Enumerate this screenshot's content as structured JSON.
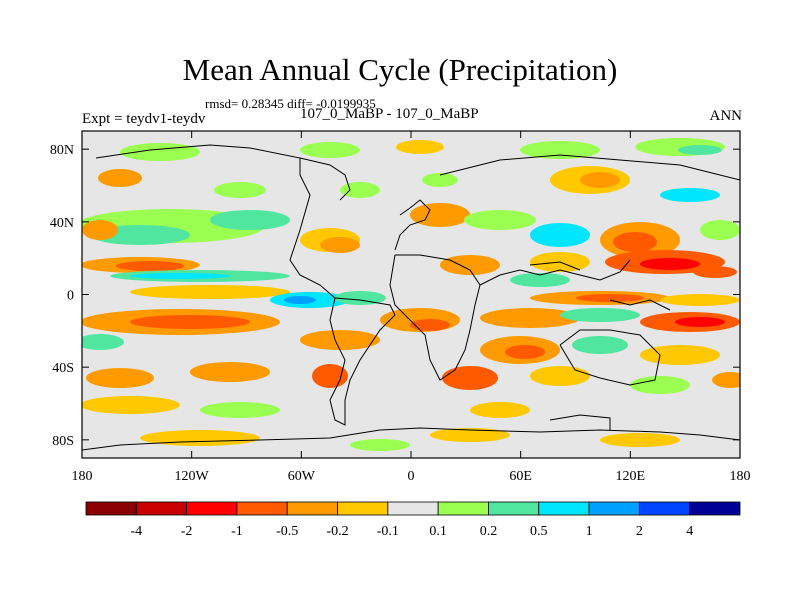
{
  "chart_data": {
    "type": "heatmap",
    "title": "Mean Annual Cycle (Precipitation)",
    "stats_text": "rmsd= 0.28345 diff= -0.0199935",
    "left_label": "Expt = teydv1-teydv",
    "center_label": "107_0_MaBP - 107_0_MaBP",
    "right_label": "ANN",
    "x_ticks": [
      "180",
      "120W",
      "60W",
      "0",
      "60E",
      "120E",
      "180"
    ],
    "x_tick_values": [
      -180,
      -120,
      -60,
      0,
      60,
      120,
      180
    ],
    "y_ticks": [
      "80N",
      "40N",
      "0",
      "40S",
      "80S"
    ],
    "y_tick_values": [
      80,
      40,
      0,
      -40,
      -80
    ],
    "xlim": [
      -180,
      180
    ],
    "ylim": [
      -90,
      90
    ],
    "colorbar": {
      "labels": [
        "-4",
        "-2",
        "-1",
        "-0.5",
        "-0.2",
        "-0.1",
        "0.1",
        "0.2",
        "0.5",
        "1",
        "2",
        "4"
      ],
      "colors": [
        "#8b0000",
        "#c80000",
        "#ff0000",
        "#ff5a00",
        "#ff9a00",
        "#ffc800",
        "#e6e6e6",
        "#9aff50",
        "#50e6a0",
        "#00e6ff",
        "#00a0ff",
        "#0046ff",
        "#000096"
      ]
    }
  }
}
